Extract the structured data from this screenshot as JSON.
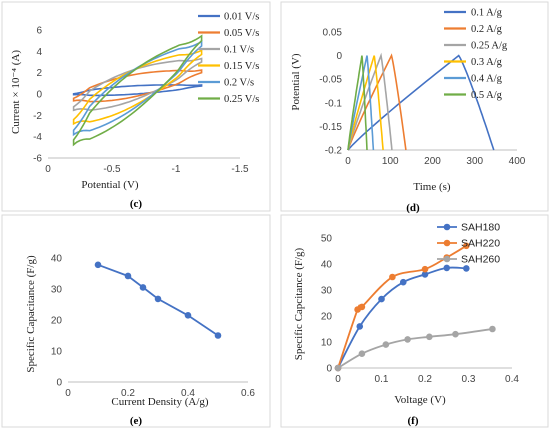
{
  "chart_data": [
    {
      "type": "line",
      "panel_label": "(c)",
      "xlabel": "Potential (V)",
      "ylabel": "Current × 10⁻⁴ (A)",
      "xlim": [
        0,
        -1.5
      ],
      "ylim": [
        -6,
        6
      ],
      "xticks": [
        0,
        -0.5,
        -1,
        -1.5
      ],
      "yticks": [
        -6,
        -4,
        -2,
        0,
        2,
        4,
        6
      ],
      "legend_position": "right",
      "series": [
        {
          "name": "0.01 V/s",
          "color": "#4472C4",
          "x_start": -0.2,
          "x_end": -1.2,
          "i_start": 0.02,
          "i_end": 0.75,
          "width": 0.6
        },
        {
          "name": "0.05 V/s",
          "color": "#ED7D31",
          "x_start": -0.2,
          "x_end": -1.2,
          "i_start": -0.4,
          "i_end": 2.0,
          "width": 1.6
        },
        {
          "name": "0.1 V/s",
          "color": "#A5A5A5",
          "x_start": -0.2,
          "x_end": -1.2,
          "i_start": -1.2,
          "i_end": 3.0,
          "width": 2.2
        },
        {
          "name": "0.15 V/s",
          "color": "#FFC000",
          "x_start": -0.2,
          "x_end": -1.2,
          "i_start": -2.4,
          "i_end": 3.7,
          "width": 2.6
        },
        {
          "name": "0.2 V/s",
          "color": "#5B9BD5",
          "x_start": -0.2,
          "x_end": -1.2,
          "i_start": -3.4,
          "i_end": 4.5,
          "width": 2.8
        },
        {
          "name": "0.25 V/s",
          "color": "#70AD47",
          "x_start": -0.2,
          "x_end": -1.2,
          "i_start": -4.3,
          "i_end": 5.0,
          "width": 3.0
        }
      ]
    },
    {
      "type": "line",
      "panel_label": "(d)",
      "xlabel": "Time (s)",
      "ylabel": "Potential (V)",
      "xlim": [
        0,
        400
      ],
      "ylim": [
        -0.2,
        0.05
      ],
      "xticks": [
        0,
        100,
        200,
        300,
        400
      ],
      "yticks": [
        0.05,
        0,
        -0.05,
        -0.1,
        -0.15,
        -0.2
      ],
      "legend_position": "right",
      "series": [
        {
          "name": "0.1 A/g",
          "color": "#4472C4",
          "t_peak": 262,
          "t_end": 345
        },
        {
          "name": "0.2 A/g",
          "color": "#ED7D31",
          "t_peak": 103,
          "t_end": 137
        },
        {
          "name": "0.25 A/g",
          "color": "#A5A5A5",
          "t_peak": 78,
          "t_end": 104
        },
        {
          "name": "0.3 A/g",
          "color": "#FFC000",
          "t_peak": 62,
          "t_end": 83
        },
        {
          "name": "0.4 A/g",
          "color": "#5B9BD5",
          "t_peak": 45,
          "t_end": 60
        },
        {
          "name": "0.5 A/g",
          "color": "#70AD47",
          "t_peak": 33,
          "t_end": 45
        }
      ]
    },
    {
      "type": "line",
      "panel_label": "(e)",
      "xlabel": "Current Density (A/g)",
      "ylabel": "Specific Capacitance (F/g)",
      "xlim": [
        0,
        0.6
      ],
      "ylim": [
        0,
        40
      ],
      "xticks": [
        0,
        0.2,
        0.4,
        0.6
      ],
      "yticks": [
        0,
        10,
        20,
        30,
        40
      ],
      "series": [
        {
          "name": "",
          "color": "#4472C4",
          "x": [
            0.1,
            0.2,
            0.25,
            0.3,
            0.4,
            0.5
          ],
          "y": [
            37.8,
            34.2,
            30.5,
            26.8,
            21.5,
            15.0
          ]
        }
      ]
    },
    {
      "type": "line",
      "panel_label": "(f)",
      "xlabel": "Voltage (V)",
      "ylabel": "Specific Capcitance (F/g)",
      "xlim": [
        0,
        0.4
      ],
      "ylim": [
        0,
        50
      ],
      "xticks": [
        0,
        0.1,
        0.2,
        0.3,
        0.4
      ],
      "yticks": [
        0,
        10,
        20,
        30,
        40,
        50
      ],
      "legend_position": "top-left",
      "series": [
        {
          "name": "SAH180",
          "color": "#4472C4",
          "x": [
            0,
            0.05,
            0.1,
            0.15,
            0.2,
            0.25,
            0.295
          ],
          "y": [
            0,
            16,
            26.5,
            33,
            36,
            38.5,
            38.3
          ]
        },
        {
          "name": "SAH220",
          "color": "#ED7D31",
          "x": [
            0,
            0.045,
            0.055,
            0.125,
            0.2,
            0.25,
            0.295
          ],
          "y": [
            0,
            22.5,
            23.5,
            35,
            38,
            42.5,
            47
          ]
        },
        {
          "name": "SAH260",
          "color": "#A5A5A5",
          "x": [
            0,
            0.055,
            0.11,
            0.16,
            0.21,
            0.27,
            0.355
          ],
          "y": [
            0,
            5.5,
            9,
            11,
            12,
            13,
            15
          ]
        }
      ]
    }
  ]
}
